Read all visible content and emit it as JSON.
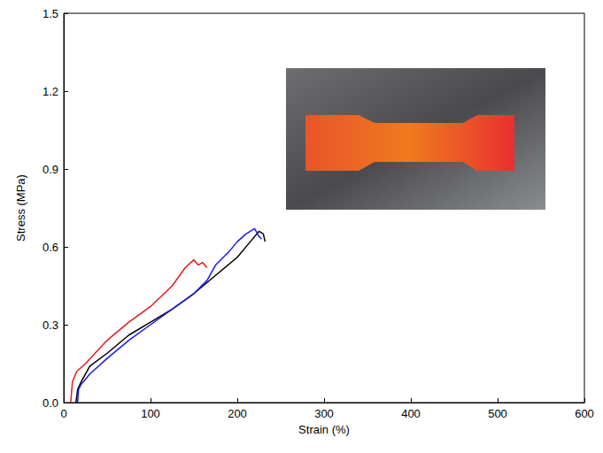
{
  "chart_data": {
    "type": "line",
    "x_label": "Strain (%)",
    "y_label": "Stress (MPa)",
    "xlim": [
      0,
      600
    ],
    "xticks": [
      0,
      100,
      200,
      300,
      400,
      500,
      600
    ],
    "ylim": [
      0,
      1.5
    ],
    "yticks": [
      {
        "value": 0,
        "label": "0.0"
      },
      0.3,
      0.6,
      0.9,
      1.2,
      1.5
    ],
    "grid": false,
    "marker": "none",
    "series": [
      {
        "color": "#e8191c",
        "x": [
          8,
          10,
          15,
          25,
          50,
          75,
          100,
          125,
          140,
          150,
          155,
          160,
          165
        ],
        "values": [
          0,
          0.08,
          0.12,
          0.15,
          0.24,
          0.31,
          0.37,
          0.45,
          0.52,
          0.55,
          0.53,
          0.54,
          0.52
        ]
      },
      {
        "color": "#000000",
        "x": [
          14,
          16,
          20,
          30,
          50,
          75,
          100,
          125,
          150,
          175,
          200,
          215,
          225,
          230,
          232
        ],
        "values": [
          0,
          0.05,
          0.08,
          0.14,
          0.19,
          0.26,
          0.31,
          0.36,
          0.42,
          0.49,
          0.56,
          0.62,
          0.66,
          0.65,
          0.62
        ]
      },
      {
        "color": "#1a1aee",
        "x": [
          16,
          17,
          20,
          30,
          50,
          75,
          100,
          125,
          150,
          165,
          175,
          190,
          200,
          210,
          220,
          225,
          228
        ],
        "values": [
          0,
          0.05,
          0.07,
          0.11,
          0.17,
          0.24,
          0.3,
          0.36,
          0.42,
          0.47,
          0.53,
          0.58,
          0.62,
          0.65,
          0.67,
          0.64,
          0.63
        ]
      }
    ]
  }
}
